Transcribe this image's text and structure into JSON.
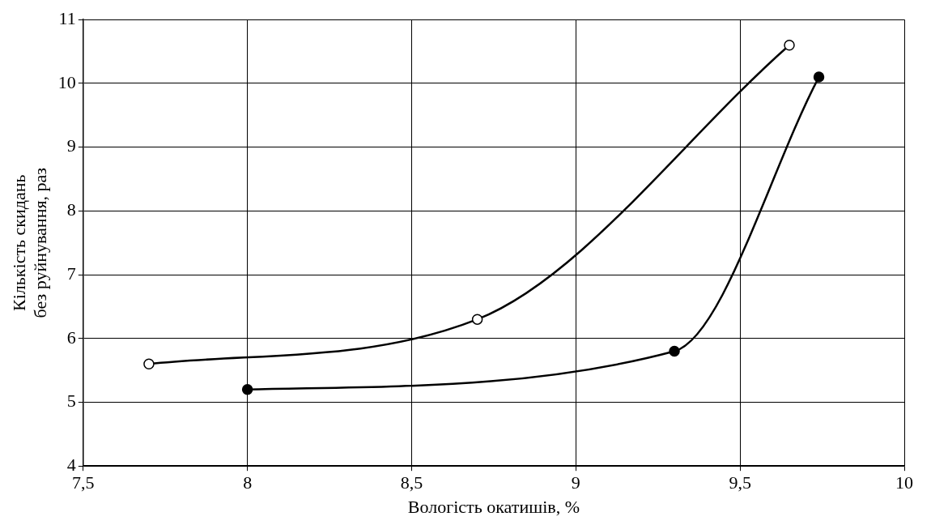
{
  "chart_data": {
    "type": "line",
    "xlabel": "Вологість окатишів, %",
    "ylabel": "Кількість скидань\nбез руйнування, раз",
    "xlim": [
      7.5,
      10
    ],
    "xticks": [
      {
        "value": 7.5,
        "label": "7,5"
      },
      8,
      {
        "value": 8.5,
        "label": "8,5"
      },
      9,
      {
        "value": 9.5,
        "label": "9,5"
      },
      10
    ],
    "ylim": [
      4,
      11
    ],
    "yticks": [
      4,
      5,
      6,
      7,
      8,
      9,
      10,
      11
    ],
    "grid": true,
    "legend": false,
    "marker": "circle",
    "line_style": "solid",
    "series": [
      {
        "color": "#000000",
        "x": [
          7.7,
          8.7,
          9.65
        ],
        "values": [
          5.6,
          6.3,
          10.6
        ]
      },
      {
        "color": "#000000",
        "x": [
          8,
          9.3,
          9.74
        ],
        "values": [
          5.2,
          5.8,
          10.1
        ]
      }
    ]
  }
}
